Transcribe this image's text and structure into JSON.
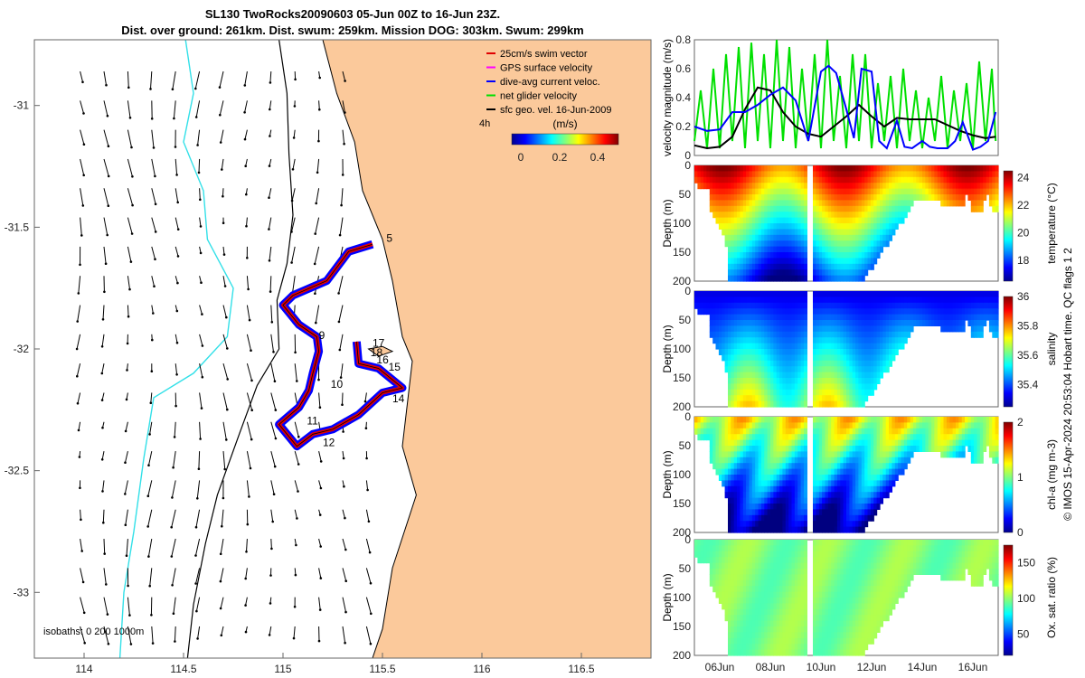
{
  "title": {
    "line1": "SL130 TwoRocks20090603 05-Jun 00Z to 16-Jun 23Z.",
    "line2": "Dist. over ground: 261km. Dist. swum: 259km. Mission DOG: 303km. Swum: 299km"
  },
  "colors": {
    "land": "#fbc99b",
    "isobath_0": "#000000",
    "isobath_200": "#000000",
    "isobath_1000": "#33e0e8",
    "swim_vector": "#e00000",
    "gps_velocity": "#ff00ff",
    "dive_avg": "#0000ff",
    "net_glider": "#00e000",
    "sfc_geo": "#000000"
  },
  "map": {
    "xlim": [
      113.75,
      116.85
    ],
    "ylim": [
      -33.27,
      -30.73
    ],
    "xticks": [
      "114",
      "114.5",
      "115",
      "115.5",
      "116",
      "116.5"
    ],
    "yticks": [
      "-31",
      "-31.5",
      "-32",
      "-32.5",
      "-33"
    ],
    "isobaths_label": "isobaths: 0   200  1000m",
    "time_tag": "4h",
    "colorbar_unit": "(m/s)",
    "colorbar_ticks": [
      "0",
      "0.2",
      "0.4"
    ],
    "legend": [
      {
        "label": "25cm/s swim vector",
        "color": "#e00000"
      },
      {
        "label": "GPS surface velocity",
        "color": "#ff00ff"
      },
      {
        "label": "dive-avg current veloc.",
        "color": "#0000ff"
      },
      {
        "label": "net glider velocity",
        "color": "#00e000"
      },
      {
        "label": "sfc geo. vel. 16-Jun-2009",
        "color": "#000000"
      }
    ],
    "day_markers": [
      {
        "text": "5",
        "lon": 115.52,
        "lat": -31.56
      },
      {
        "text": "9",
        "lon": 115.18,
        "lat": -31.96
      },
      {
        "text": "10",
        "lon": 115.24,
        "lat": -32.16
      },
      {
        "text": "11",
        "lon": 115.12,
        "lat": -32.31
      },
      {
        "text": "12",
        "lon": 115.2,
        "lat": -32.4
      },
      {
        "text": "14",
        "lon": 115.55,
        "lat": -32.22
      },
      {
        "text": "15",
        "lon": 115.53,
        "lat": -32.09
      },
      {
        "text": "16",
        "lon": 115.47,
        "lat": -32.06
      },
      {
        "text": "17",
        "lon": 115.45,
        "lat": -31.99
      },
      {
        "text": "18",
        "lon": 115.44,
        "lat": -32.03
      }
    ],
    "track": [
      [
        115.45,
        -31.57
      ],
      [
        115.33,
        -31.6
      ],
      [
        115.22,
        -31.72
      ],
      [
        115.05,
        -31.78
      ],
      [
        115.0,
        -31.82
      ],
      [
        115.08,
        -31.9
      ],
      [
        115.17,
        -31.95
      ],
      [
        115.18,
        -32.01
      ],
      [
        115.15,
        -32.1
      ],
      [
        115.13,
        -32.17
      ],
      [
        115.08,
        -32.24
      ],
      [
        114.98,
        -32.31
      ],
      [
        115.07,
        -32.4
      ],
      [
        115.15,
        -32.35
      ],
      [
        115.25,
        -32.33
      ],
      [
        115.38,
        -32.27
      ],
      [
        115.5,
        -32.18
      ],
      [
        115.6,
        -32.16
      ],
      [
        115.48,
        -32.08
      ],
      [
        115.38,
        -32.06
      ],
      [
        115.37,
        -31.97
      ]
    ]
  },
  "chart_data": [
    {
      "type": "line",
      "ylabel": "velocity magnitude (m/s)",
      "ylim": [
        0,
        0.8
      ],
      "yticks": [
        "0",
        "0.2",
        "0.4",
        "0.6",
        "0.8"
      ],
      "x_range_days": [
        5.0,
        17.0
      ],
      "series": [
        {
          "color": "#0000ff",
          "x": [
            5.0,
            5.5,
            6.0,
            6.5,
            7.0,
            7.5,
            8.0,
            8.5,
            9.0,
            9.5,
            10.0,
            10.3,
            10.6,
            11.0,
            11.3,
            11.6,
            12.0,
            12.3,
            12.6,
            13.0,
            13.3,
            13.6,
            14.0,
            14.3,
            14.6,
            15.0,
            15.3,
            15.6,
            16.0,
            16.3,
            16.6,
            16.9
          ],
          "y": [
            0.2,
            0.17,
            0.18,
            0.3,
            0.3,
            0.35,
            0.42,
            0.47,
            0.38,
            0.1,
            0.58,
            0.62,
            0.57,
            0.32,
            0.12,
            0.6,
            0.58,
            0.1,
            0.05,
            0.24,
            0.06,
            0.05,
            0.1,
            0.06,
            0.05,
            0.05,
            0.1,
            0.23,
            0.04,
            0.06,
            0.1,
            0.3
          ]
        },
        {
          "color": "#000000",
          "x": [
            5.0,
            5.5,
            6.0,
            6.5,
            7.0,
            7.5,
            8.0,
            8.5,
            9.0,
            9.5,
            10.0,
            10.5,
            11.0,
            11.5,
            12.0,
            12.5,
            13.0,
            13.5,
            14.0,
            14.5,
            15.0,
            15.5,
            16.0,
            16.5,
            16.9
          ],
          "y": [
            0.07,
            0.05,
            0.06,
            0.13,
            0.32,
            0.47,
            0.45,
            0.3,
            0.2,
            0.15,
            0.13,
            0.2,
            0.27,
            0.35,
            0.27,
            0.2,
            0.26,
            0.25,
            0.25,
            0.25,
            0.21,
            0.17,
            0.14,
            0.12,
            0.13
          ]
        },
        {
          "color": "#00e000",
          "x": [
            5.0,
            5.25,
            5.5,
            5.75,
            6.0,
            6.25,
            6.5,
            6.75,
            7.0,
            7.25,
            7.5,
            7.75,
            8.0,
            8.25,
            8.5,
            8.75,
            9.0,
            9.25,
            9.5,
            9.75,
            10.0,
            10.25,
            10.5,
            10.75,
            11.0,
            11.25,
            11.5,
            11.75,
            12.0,
            12.25,
            12.5,
            12.75,
            13.0,
            13.25,
            13.5,
            13.75,
            14.0,
            14.25,
            14.5,
            14.75,
            15.0,
            15.25,
            15.5,
            15.75,
            16.0,
            16.25,
            16.5,
            16.75,
            16.9
          ],
          "y": [
            0.1,
            0.45,
            0.05,
            0.6,
            0.05,
            0.7,
            0.1,
            0.75,
            0.05,
            0.78,
            0.1,
            0.7,
            0.05,
            0.8,
            0.1,
            0.75,
            0.05,
            0.6,
            0.1,
            0.7,
            0.05,
            0.8,
            0.1,
            0.55,
            0.05,
            0.7,
            0.1,
            0.7,
            0.05,
            0.5,
            0.1,
            0.55,
            0.05,
            0.6,
            0.1,
            0.45,
            0.05,
            0.4,
            0.1,
            0.55,
            0.05,
            0.45,
            0.1,
            0.5,
            0.05,
            0.65,
            0.1,
            0.6,
            0.1
          ]
        }
      ]
    },
    {
      "type": "heatmap",
      "ylabel": "Depth (m)",
      "clabel": "temperature (°C)",
      "ylim": [
        0,
        200
      ],
      "yticks": [
        "0",
        "50",
        "100",
        "150",
        "200"
      ],
      "cticks": [
        "18",
        "20",
        "22",
        "24"
      ],
      "crange": [
        16.5,
        24.5
      ]
    },
    {
      "type": "heatmap",
      "ylabel": "Depth (m)",
      "clabel": "salinity",
      "ylim": [
        0,
        200
      ],
      "yticks": [
        "0",
        "50",
        "100",
        "150",
        "200"
      ],
      "cticks": [
        "35.4",
        "35.6",
        "35.8",
        "36"
      ],
      "crange": [
        35.25,
        36.0
      ]
    },
    {
      "type": "heatmap",
      "ylabel": "Depth (m)",
      "clabel": "chl-a (mg m-3)",
      "ylim": [
        0,
        200
      ],
      "yticks": [
        "0",
        "50",
        "100",
        "150",
        "200"
      ],
      "cticks": [
        "0",
        "1",
        "2"
      ],
      "crange": [
        0,
        2
      ]
    },
    {
      "type": "heatmap",
      "ylabel": "Depth (m)",
      "clabel": "Ox. sat. ratio (%)",
      "ylim": [
        0,
        200
      ],
      "yticks": [
        "0",
        "50",
        "100",
        "150",
        "200"
      ],
      "cticks": [
        "50",
        "100",
        "150"
      ],
      "crange": [
        20,
        175
      ]
    }
  ],
  "time_axis": [
    "06Jun",
    "08Jun",
    "10Jun",
    "12Jun",
    "14Jun",
    "16Jun"
  ],
  "footer": "© IMOS 15-Apr-2024 20:53:04 Hobart time. QC flags 1  2"
}
